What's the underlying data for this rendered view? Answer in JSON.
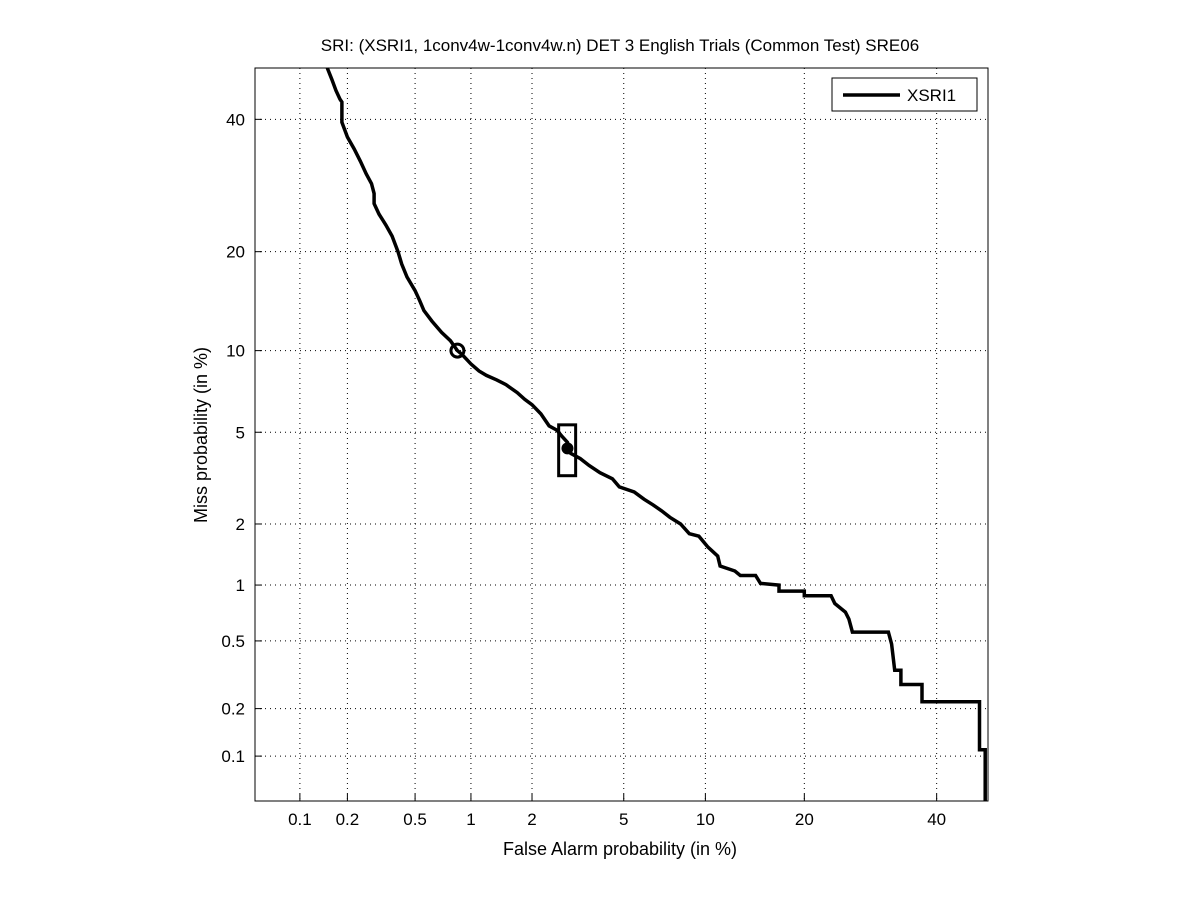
{
  "chart_data": {
    "type": "line",
    "title": "SRI: (XSRI1, 1conv4w-1conv4w.n) DET 3 English Trials (Common Test) SRE06",
    "xlabel": "False Alarm probability (in %)",
    "ylabel": "Miss probability (in %)",
    "scale": "normal-deviate (probit) on both axes",
    "xlim": [
      0.05,
      49
    ],
    "ylim": [
      0.05,
      49
    ],
    "grid": true,
    "legend_position": "top-right",
    "xticks": [
      {
        "v": 0.1,
        "label": "0.1"
      },
      {
        "v": 0.2,
        "label": "0.2"
      },
      {
        "v": 0.5,
        "label": "0.5"
      },
      {
        "v": 1,
        "label": "1"
      },
      {
        "v": 2,
        "label": "2"
      },
      {
        "v": 5,
        "label": "5"
      },
      {
        "v": 10,
        "label": "10"
      },
      {
        "v": 20,
        "label": "20"
      },
      {
        "v": 40,
        "label": "40"
      }
    ],
    "yticks": [
      {
        "v": 0.1,
        "label": "0.1"
      },
      {
        "v": 0.2,
        "label": "0.2"
      },
      {
        "v": 0.5,
        "label": "0.5"
      },
      {
        "v": 1,
        "label": "1"
      },
      {
        "v": 2,
        "label": "2"
      },
      {
        "v": 5,
        "label": "5"
      },
      {
        "v": 10,
        "label": "10"
      },
      {
        "v": 20,
        "label": "20"
      },
      {
        "v": 40,
        "label": "40"
      }
    ],
    "series": [
      {
        "name": "XSRI1",
        "color": "#000000",
        "points": [
          [
            0.15,
            49
          ],
          [
            0.16,
            47
          ],
          [
            0.17,
            45
          ],
          [
            0.18,
            43.5
          ],
          [
            0.185,
            43
          ],
          [
            0.185,
            39.5
          ],
          [
            0.2,
            37
          ],
          [
            0.22,
            35
          ],
          [
            0.24,
            33
          ],
          [
            0.26,
            31
          ],
          [
            0.28,
            29.5
          ],
          [
            0.29,
            28
          ],
          [
            0.29,
            26.5
          ],
          [
            0.31,
            25
          ],
          [
            0.34,
            23.5
          ],
          [
            0.37,
            22
          ],
          [
            0.4,
            20
          ],
          [
            0.42,
            18.5
          ],
          [
            0.45,
            17
          ],
          [
            0.5,
            15.5
          ],
          [
            0.53,
            14.5
          ],
          [
            0.56,
            13.5
          ],
          [
            0.62,
            12.5
          ],
          [
            0.7,
            11.5
          ],
          [
            0.78,
            10.8
          ],
          [
            0.85,
            10
          ],
          [
            0.9,
            9.7
          ],
          [
            1.0,
            9.0
          ],
          [
            1.1,
            8.5
          ],
          [
            1.2,
            8.2
          ],
          [
            1.35,
            7.9
          ],
          [
            1.5,
            7.6
          ],
          [
            1.7,
            7.1
          ],
          [
            1.85,
            6.7
          ],
          [
            2.0,
            6.4
          ],
          [
            2.2,
            5.9
          ],
          [
            2.4,
            5.3
          ],
          [
            2.6,
            5.1
          ],
          [
            2.75,
            4.8
          ],
          [
            2.9,
            4.55
          ],
          [
            3.0,
            4.1
          ],
          [
            3.3,
            3.9
          ],
          [
            3.6,
            3.65
          ],
          [
            4.0,
            3.4
          ],
          [
            4.5,
            3.2
          ],
          [
            4.8,
            2.95
          ],
          [
            5.5,
            2.8
          ],
          [
            6.0,
            2.6
          ],
          [
            6.5,
            2.45
          ],
          [
            7.0,
            2.3
          ],
          [
            7.5,
            2.15
          ],
          [
            8.2,
            2.0
          ],
          [
            8.8,
            1.8
          ],
          [
            9.5,
            1.75
          ],
          [
            10.2,
            1.55
          ],
          [
            11.0,
            1.4
          ],
          [
            11.2,
            1.25
          ],
          [
            12.5,
            1.18
          ],
          [
            13.0,
            1.12
          ],
          [
            14.5,
            1.12
          ],
          [
            15.0,
            1.02
          ],
          [
            17.0,
            1.0
          ],
          [
            17.0,
            0.93
          ],
          [
            20.0,
            0.93
          ],
          [
            20.0,
            0.88
          ],
          [
            23.5,
            0.88
          ],
          [
            24.0,
            0.8
          ],
          [
            25.5,
            0.72
          ],
          [
            26.0,
            0.66
          ],
          [
            26.5,
            0.56
          ],
          [
            32.0,
            0.56
          ],
          [
            32.5,
            0.48
          ],
          [
            33.0,
            0.34
          ],
          [
            34.0,
            0.34
          ],
          [
            34.0,
            0.28
          ],
          [
            37.5,
            0.28
          ],
          [
            37.5,
            0.22
          ],
          [
            47.0,
            0.22
          ],
          [
            47.5,
            0.22
          ],
          [
            47.5,
            0.11
          ],
          [
            48.5,
            0.11
          ],
          [
            48.5,
            0.05
          ]
        ]
      }
    ],
    "markers": [
      {
        "name": "min-dcf-point",
        "shape": "circle",
        "x": 0.85,
        "y": 10.0
      },
      {
        "name": "actual-dcf-point",
        "shape": "filled-circle-with-box",
        "x": 2.9,
        "y": 4.3,
        "box_x": [
          2.65,
          3.15
        ],
        "box_y": [
          3.3,
          5.35
        ]
      }
    ]
  }
}
